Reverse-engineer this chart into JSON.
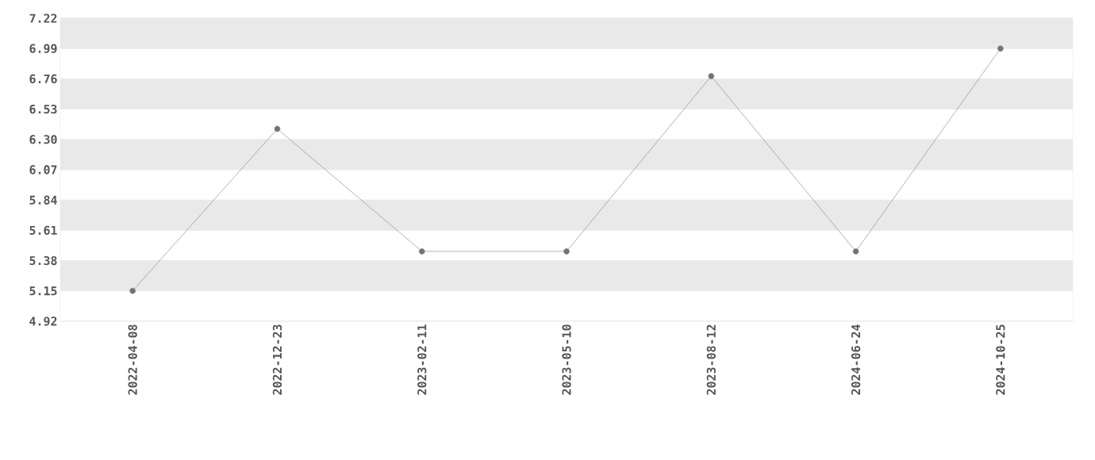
{
  "chart_data": {
    "type": "line",
    "categories": [
      "2022-04-08",
      "2022-12-23",
      "2023-02-11",
      "2023-05-10",
      "2023-08-12",
      "2024-06-24",
      "2024-10-25"
    ],
    "series": [
      {
        "color": "#808080",
        "values": [
          5.15,
          6.38,
          5.45,
          5.45,
          6.78,
          5.45,
          6.99
        ]
      }
    ],
    "ylim": [
      4.92,
      7.22
    ],
    "yticks": [
      4.92,
      5.15,
      5.38,
      5.61,
      5.84,
      6.07,
      {
        "value": 6.3,
        "label": "6.30"
      },
      6.53,
      6.76,
      6.99,
      7.22
    ],
    "grid": "y",
    "marker": "circle",
    "line_style": "solid"
  }
}
